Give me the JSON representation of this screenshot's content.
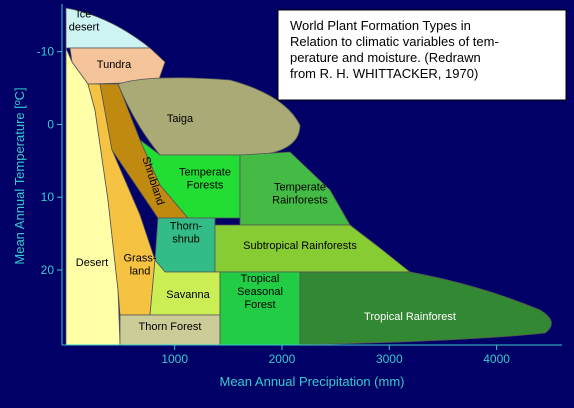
{
  "chart_data": {
    "type": "biome",
    "title_lines": [
      "World Plant Formation Types in",
      "Relation to climatic variables of tem-",
      "perature and moisture. (Redrawn",
      "from R. H. WHITTACKER, 1970)"
    ],
    "xlabel": "Mean Annual Precipitation (mm)",
    "ylabel": "Mean Annual Temperature [ºC]",
    "xlim": [
      -50,
      4600
    ],
    "xticks": [
      1000,
      2000,
      3000,
      4000
    ],
    "ylim": [
      -16,
      30.3
    ],
    "yticks": [
      -10,
      0,
      10,
      20
    ],
    "regions": [
      [
        "Ice",
        "desert"
      ],
      [
        "Tundra"
      ],
      [
        "Taiga"
      ],
      [
        "Shrubland"
      ],
      [
        "Temperate",
        "Forests"
      ],
      [
        "Temperate",
        "Rainforests"
      ],
      [
        "Desert"
      ],
      [
        "Grass-",
        "land"
      ],
      [
        "Thorn-",
        "shrub"
      ],
      [
        "Subtropical Rainforests"
      ],
      [
        "Savanna"
      ],
      [
        "Tropical",
        "Seasonal",
        "Forest"
      ],
      [
        "Tropical Rainforest"
      ],
      [
        "Thorn Forest"
      ]
    ]
  }
}
